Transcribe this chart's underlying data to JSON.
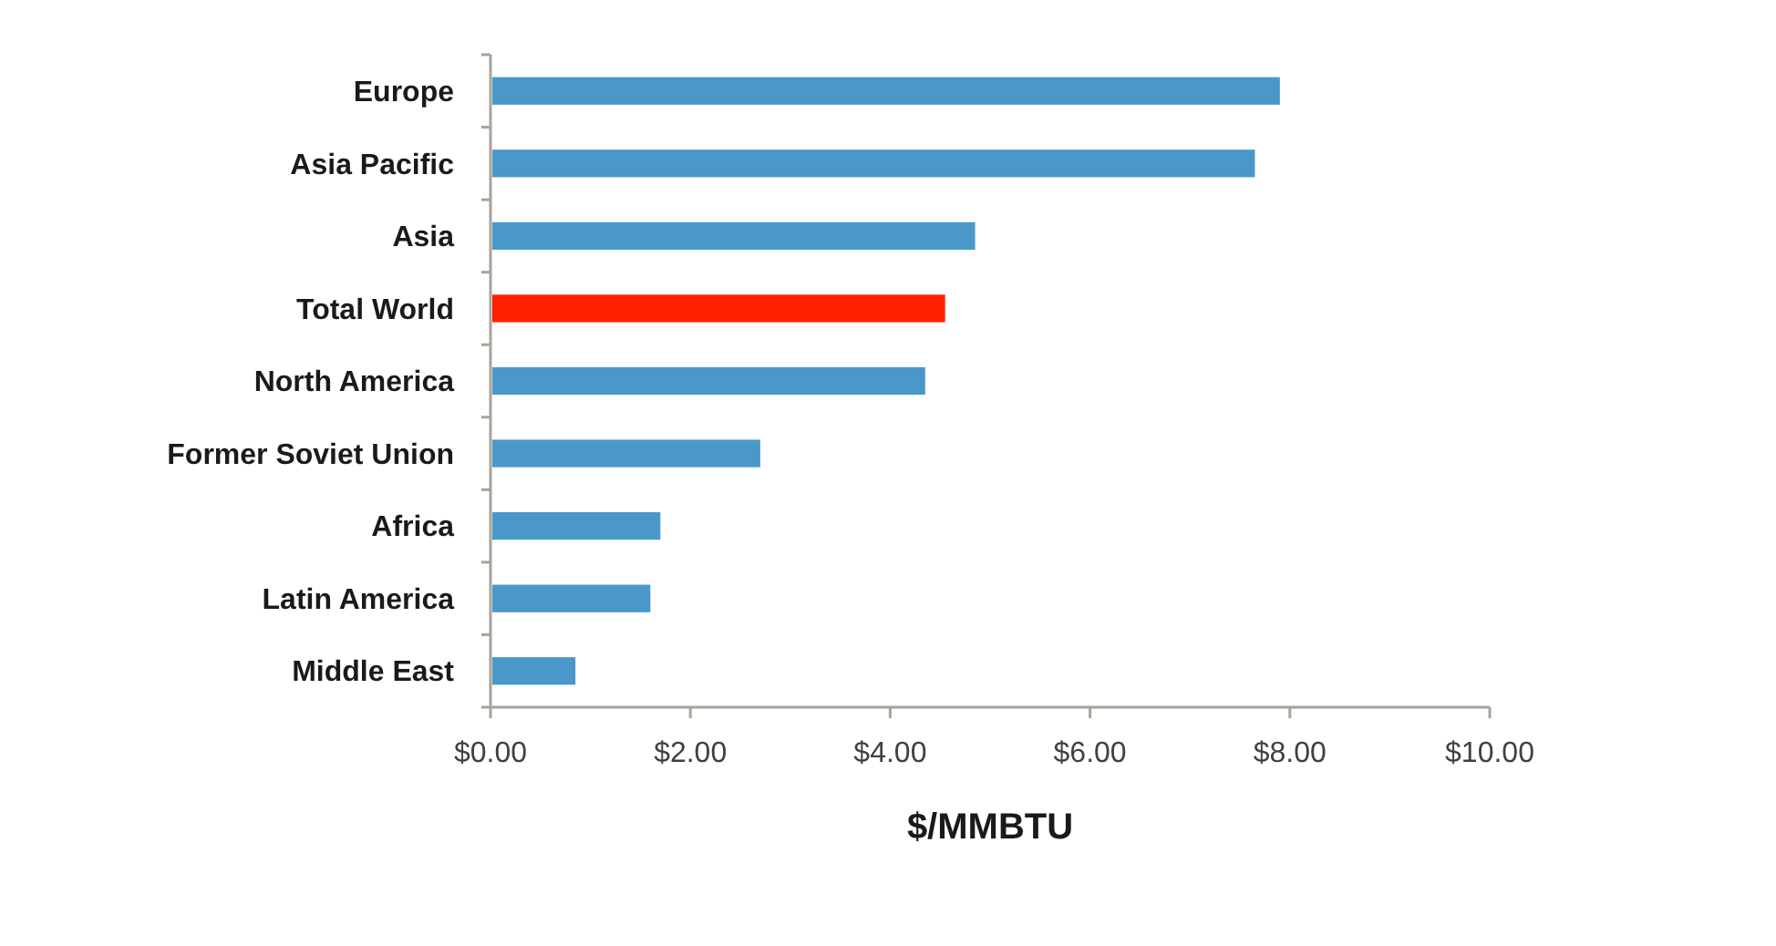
{
  "chart_data": {
    "type": "bar",
    "orientation": "horizontal",
    "xlabel": "$/MMBTU",
    "categories": [
      "Europe",
      "Asia Pacific",
      "Asia",
      "Total World",
      "North America",
      "Former Soviet Union",
      "Africa",
      "Latin America",
      "Middle East"
    ],
    "values": [
      7.9,
      7.65,
      4.85,
      4.55,
      4.35,
      2.7,
      1.7,
      1.6,
      0.85
    ],
    "colors": [
      "#4a98c9",
      "#4a98c9",
      "#4a98c9",
      "#ff2000",
      "#4a98c9",
      "#4a98c9",
      "#4a98c9",
      "#4a98c9",
      "#4a98c9"
    ],
    "xlim": [
      0,
      10
    ],
    "xticks": [
      {
        "value": 0,
        "label": "$0.00"
      },
      {
        "value": 2,
        "label": "$2.00"
      },
      {
        "value": 4,
        "label": "$4.00"
      },
      {
        "value": 6,
        "label": "$6.00"
      },
      {
        "value": 8,
        "label": "$8.00"
      },
      {
        "value": 10,
        "label": "$10.00"
      }
    ]
  }
}
